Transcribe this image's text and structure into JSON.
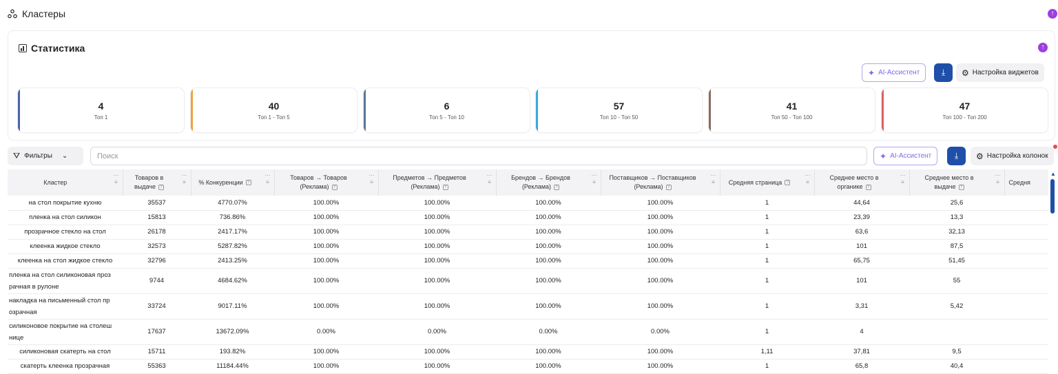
{
  "header": {
    "title": "Кластеры",
    "cluster_icon": "clusters-icon",
    "collapse_icon": "arrow-up-circle-icon"
  },
  "stats": {
    "title": "Статистика",
    "ai_button": "AI-Ассистент",
    "download_icon": "download-icon",
    "settings_button": "Настройка виджетов",
    "cards": [
      {
        "value": "4",
        "label": "Топ 1",
        "color": "#4c64a8"
      },
      {
        "value": "40",
        "label": "Топ 1 - Топ 5",
        "color": "#f0a23c"
      },
      {
        "value": "6",
        "label": "Топ 5 - Топ 10",
        "color": "#5a7694"
      },
      {
        "value": "57",
        "label": "Топ 10 - Топ 50",
        "color": "#3aa9d9"
      },
      {
        "value": "41",
        "label": "Топ 50 - Топ 100",
        "color": "#8a6b5e"
      },
      {
        "value": "47",
        "label": "Топ 100 - Топ 200",
        "color": "#e06060"
      }
    ]
  },
  "toolbar": {
    "filters_label": "Фильтры",
    "search_placeholder": "Поиск",
    "search_value": "",
    "ai_button": "AI-Ассистент",
    "settings_button": "Настройка колонок"
  },
  "table": {
    "columns": [
      "Кластер",
      "Товаров в выдаче",
      "% Конкуренции",
      "Товаров → Товаров (Реклама)",
      "Предметов → Предметов (Реклама)",
      "Брендов → Брендов (Реклама)",
      "Поставщиков → Поставщиков (Реклама)",
      "Средняя страница",
      "Среднее место в органике",
      "Среднее место в выдаче",
      "Средня"
    ],
    "rows": [
      [
        "на стол покрытие кухню",
        "35537",
        "4770.07%",
        "100.00%",
        "100.00%",
        "100.00%",
        "100.00%",
        "1",
        "44,64",
        "25,6",
        ""
      ],
      [
        "пленка на стол силикон",
        "15813",
        "736.86%",
        "100.00%",
        "100.00%",
        "100.00%",
        "100.00%",
        "1",
        "23,39",
        "13,3",
        ""
      ],
      [
        "прозрачное стекло на стол",
        "26178",
        "2417.17%",
        "100.00%",
        "100.00%",
        "100.00%",
        "100.00%",
        "1",
        "63,6",
        "32,13",
        ""
      ],
      [
        "клеенка жидкое стекло",
        "32573",
        "5287.82%",
        "100.00%",
        "100.00%",
        "100.00%",
        "100.00%",
        "1",
        "101",
        "87,5",
        ""
      ],
      [
        "клеенка на стол жидкое стекло",
        "32796",
        "2413.25%",
        "100.00%",
        "100.00%",
        "100.00%",
        "100.00%",
        "1",
        "65,75",
        "51,45",
        ""
      ],
      [
        "пленка на стол силиконовая проз рачная в рулоне",
        "9744",
        "4684.62%",
        "100.00%",
        "100.00%",
        "100.00%",
        "100.00%",
        "1",
        "101",
        "55",
        ""
      ],
      [
        "накладка на письменный стол пр озрачная",
        "33724",
        "9017.11%",
        "100.00%",
        "100.00%",
        "100.00%",
        "100.00%",
        "1",
        "3,31",
        "5,42",
        ""
      ],
      [
        "силиконовое покрытие на столеш ницe",
        "17637",
        "13672.09%",
        "0.00%",
        "0.00%",
        "0.00%",
        "0.00%",
        "1",
        "4",
        "",
        ""
      ],
      [
        "силиконовая скатерть на стол",
        "15711",
        "193.82%",
        "100.00%",
        "100.00%",
        "100.00%",
        "100.00%",
        "1,11",
        "37,81",
        "9,5",
        ""
      ],
      [
        "скатерть клеенка прозрачная",
        "55363",
        "11184.44%",
        "100.00%",
        "100.00%",
        "100.00%",
        "100.00%",
        "1",
        "65,8",
        "40,4",
        ""
      ]
    ]
  }
}
